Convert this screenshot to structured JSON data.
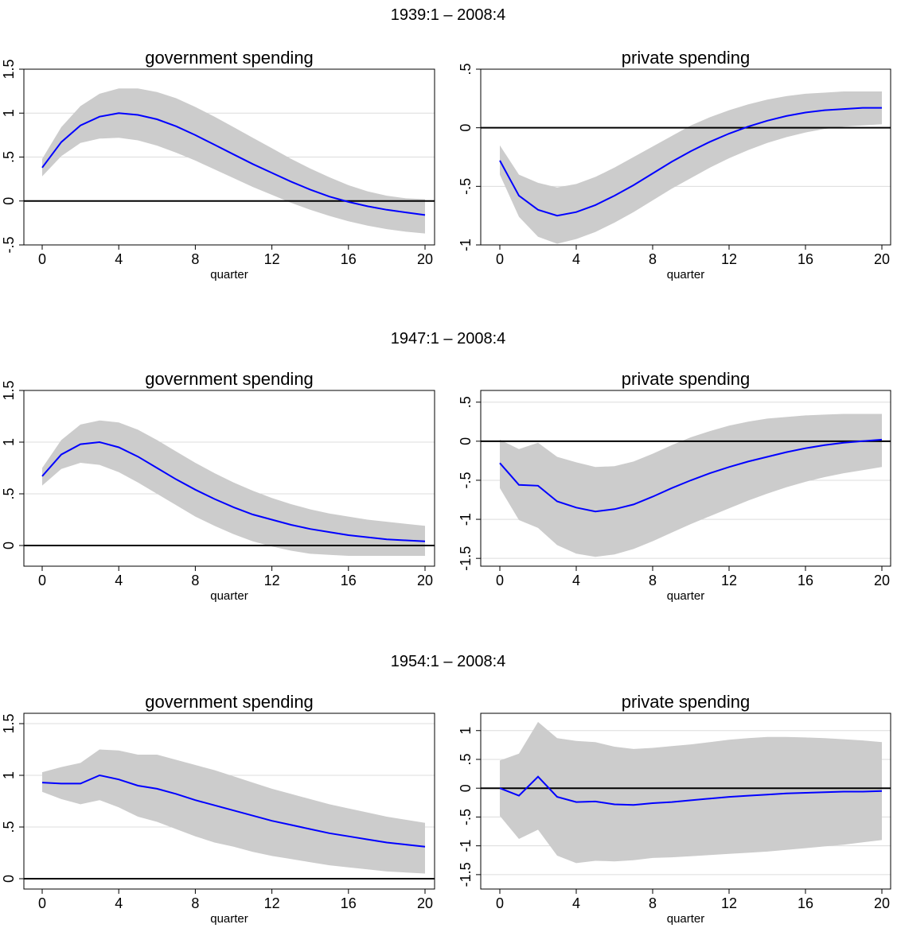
{
  "chart_data": [
    {
      "type": "line",
      "period": "1939:1 – 2008:4",
      "panels": [
        {
          "title": "government spending",
          "xlabel": "quarter",
          "xlim": [
            0,
            20
          ],
          "ylim": [
            -0.5,
            1.5
          ],
          "xticks": [
            0,
            4,
            8,
            12,
            16,
            20
          ],
          "yticks": [
            -0.5,
            0,
            0.5,
            1,
            1.5
          ],
          "ytick_labels": [
            "-.5",
            "0",
            ".5",
            "1",
            "1.5"
          ],
          "x": [
            0,
            1,
            2,
            3,
            4,
            5,
            6,
            7,
            8,
            9,
            10,
            11,
            12,
            13,
            14,
            15,
            16,
            17,
            18,
            19,
            20
          ],
          "series": [
            {
              "role": "estimate",
              "values": [
                0.38,
                0.67,
                0.86,
                0.96,
                1.0,
                0.98,
                0.93,
                0.85,
                0.75,
                0.64,
                0.53,
                0.42,
                0.32,
                0.22,
                0.13,
                0.05,
                -0.01,
                -0.06,
                -0.1,
                -0.13,
                -0.16
              ]
            },
            {
              "role": "upper",
              "values": [
                0.48,
                0.84,
                1.08,
                1.22,
                1.28,
                1.28,
                1.24,
                1.17,
                1.07,
                0.96,
                0.84,
                0.72,
                0.6,
                0.48,
                0.37,
                0.27,
                0.18,
                0.11,
                0.06,
                0.03,
                0.02
              ]
            },
            {
              "role": "lower",
              "values": [
                0.28,
                0.51,
                0.66,
                0.71,
                0.72,
                0.69,
                0.63,
                0.55,
                0.46,
                0.36,
                0.26,
                0.16,
                0.07,
                -0.02,
                -0.1,
                -0.17,
                -0.23,
                -0.28,
                -0.32,
                -0.35,
                -0.37
              ]
            }
          ]
        },
        {
          "title": "private spending",
          "xlabel": "quarter",
          "xlim": [
            0,
            20
          ],
          "ylim": [
            -1,
            0.5
          ],
          "xticks": [
            0,
            4,
            8,
            12,
            16,
            20
          ],
          "yticks": [
            -1,
            -0.5,
            0,
            0.5
          ],
          "ytick_labels": [
            "-1",
            "-.5",
            "0",
            ".5"
          ],
          "x": [
            0,
            1,
            2,
            3,
            4,
            5,
            6,
            7,
            8,
            9,
            10,
            11,
            12,
            13,
            14,
            15,
            16,
            17,
            18,
            19,
            20
          ],
          "series": [
            {
              "role": "estimate",
              "values": [
                -0.28,
                -0.58,
                -0.7,
                -0.75,
                -0.72,
                -0.66,
                -0.58,
                -0.49,
                -0.39,
                -0.29,
                -0.2,
                -0.12,
                -0.05,
                0.01,
                0.06,
                0.1,
                0.13,
                0.15,
                0.16,
                0.17,
                0.17
              ]
            },
            {
              "role": "upper",
              "values": [
                -0.15,
                -0.4,
                -0.47,
                -0.51,
                -0.48,
                -0.42,
                -0.34,
                -0.25,
                -0.16,
                -0.07,
                0.02,
                0.09,
                0.15,
                0.2,
                0.24,
                0.27,
                0.29,
                0.3,
                0.31,
                0.31,
                0.31
              ]
            },
            {
              "role": "lower",
              "values": [
                -0.4,
                -0.76,
                -0.93,
                -0.99,
                -0.95,
                -0.89,
                -0.81,
                -0.72,
                -0.62,
                -0.52,
                -0.43,
                -0.34,
                -0.26,
                -0.19,
                -0.13,
                -0.08,
                -0.04,
                -0.01,
                0.01,
                0.02,
                0.03
              ]
            }
          ]
        }
      ]
    },
    {
      "type": "line",
      "period": "1947:1 – 2008:4",
      "panels": [
        {
          "title": "government spending",
          "xlabel": "quarter",
          "xlim": [
            0,
            20
          ],
          "ylim": [
            -0.2,
            1.5
          ],
          "xticks": [
            0,
            4,
            8,
            12,
            16,
            20
          ],
          "yticks": [
            0,
            0.5,
            1,
            1.5
          ],
          "ytick_labels": [
            "0",
            ".5",
            "1",
            "1.5"
          ],
          "x": [
            0,
            1,
            2,
            3,
            4,
            5,
            6,
            7,
            8,
            9,
            10,
            11,
            12,
            13,
            14,
            15,
            16,
            17,
            18,
            19,
            20
          ],
          "series": [
            {
              "role": "estimate",
              "values": [
                0.67,
                0.88,
                0.98,
                1.0,
                0.95,
                0.86,
                0.75,
                0.64,
                0.54,
                0.45,
                0.37,
                0.3,
                0.25,
                0.2,
                0.16,
                0.13,
                0.1,
                0.08,
                0.06,
                0.05,
                0.04
              ]
            },
            {
              "role": "upper",
              "values": [
                0.75,
                1.02,
                1.17,
                1.21,
                1.19,
                1.12,
                1.02,
                0.91,
                0.8,
                0.7,
                0.61,
                0.53,
                0.46,
                0.4,
                0.35,
                0.31,
                0.28,
                0.25,
                0.23,
                0.21,
                0.19
              ]
            },
            {
              "role": "lower",
              "values": [
                0.58,
                0.74,
                0.8,
                0.78,
                0.71,
                0.61,
                0.5,
                0.39,
                0.28,
                0.19,
                0.11,
                0.04,
                -0.01,
                -0.05,
                -0.08,
                -0.09,
                -0.1,
                -0.1,
                -0.1,
                -0.1,
                -0.1
              ]
            }
          ]
        },
        {
          "title": "private spending",
          "xlabel": "quarter",
          "xlim": [
            0,
            20
          ],
          "ylim": [
            -1.6,
            0.65
          ],
          "xticks": [
            0,
            4,
            8,
            12,
            16,
            20
          ],
          "yticks": [
            -1.5,
            -1,
            -0.5,
            0,
            0.5
          ],
          "ytick_labels": [
            "-1.5",
            "-1",
            "-.5",
            "0",
            ".5"
          ],
          "x": [
            0,
            1,
            2,
            3,
            4,
            5,
            6,
            7,
            8,
            9,
            10,
            11,
            12,
            13,
            14,
            15,
            16,
            17,
            18,
            19,
            20
          ],
          "series": [
            {
              "role": "estimate",
              "values": [
                -0.28,
                -0.56,
                -0.57,
                -0.77,
                -0.85,
                -0.9,
                -0.87,
                -0.81,
                -0.71,
                -0.6,
                -0.5,
                -0.41,
                -0.33,
                -0.26,
                -0.2,
                -0.14,
                -0.09,
                -0.05,
                -0.02,
                0.0,
                0.02
              ]
            },
            {
              "role": "upper",
              "values": [
                0.02,
                -0.1,
                -0.02,
                -0.2,
                -0.27,
                -0.33,
                -0.32,
                -0.26,
                -0.16,
                -0.05,
                0.05,
                0.13,
                0.2,
                0.25,
                0.29,
                0.31,
                0.33,
                0.34,
                0.35,
                0.35,
                0.35
              ]
            },
            {
              "role": "lower",
              "values": [
                -0.6,
                -1.01,
                -1.11,
                -1.33,
                -1.44,
                -1.48,
                -1.45,
                -1.38,
                -1.28,
                -1.17,
                -1.06,
                -0.96,
                -0.86,
                -0.76,
                -0.67,
                -0.59,
                -0.52,
                -0.46,
                -0.41,
                -0.37,
                -0.33
              ]
            }
          ]
        }
      ]
    },
    {
      "type": "line",
      "period": "1954:1 – 2008:4",
      "panels": [
        {
          "title": "government spending",
          "xlabel": "quarter",
          "xlim": [
            0,
            20
          ],
          "ylim": [
            -0.1,
            1.6
          ],
          "xticks": [
            0,
            4,
            8,
            12,
            16,
            20
          ],
          "yticks": [
            0,
            0.5,
            1,
            1.5
          ],
          "ytick_labels": [
            "0",
            ".5",
            "1",
            "1.5"
          ],
          "x": [
            0,
            1,
            2,
            3,
            4,
            5,
            6,
            7,
            8,
            9,
            10,
            11,
            12,
            13,
            14,
            15,
            16,
            17,
            18,
            19,
            20
          ],
          "series": [
            {
              "role": "estimate",
              "values": [
                0.93,
                0.92,
                0.92,
                1.0,
                0.96,
                0.9,
                0.87,
                0.82,
                0.76,
                0.71,
                0.66,
                0.61,
                0.56,
                0.52,
                0.48,
                0.44,
                0.41,
                0.38,
                0.35,
                0.33,
                0.31
              ]
            },
            {
              "role": "upper",
              "values": [
                1.03,
                1.08,
                1.12,
                1.25,
                1.24,
                1.2,
                1.2,
                1.15,
                1.1,
                1.05,
                0.99,
                0.93,
                0.87,
                0.82,
                0.77,
                0.72,
                0.68,
                0.64,
                0.6,
                0.57,
                0.54
              ]
            },
            {
              "role": "lower",
              "values": [
                0.84,
                0.77,
                0.72,
                0.76,
                0.69,
                0.6,
                0.55,
                0.48,
                0.41,
                0.35,
                0.31,
                0.26,
                0.22,
                0.19,
                0.16,
                0.13,
                0.11,
                0.09,
                0.07,
                0.06,
                0.05
              ]
            }
          ]
        },
        {
          "title": "private spending",
          "xlabel": "quarter",
          "xlim": [
            0,
            20
          ],
          "ylim": [
            -1.75,
            1.3
          ],
          "xticks": [
            0,
            4,
            8,
            12,
            16,
            20
          ],
          "yticks": [
            -1.5,
            -1,
            -0.5,
            0,
            0.5,
            1
          ],
          "ytick_labels": [
            "-1.5",
            "-1",
            "-.5",
            "0",
            ".5",
            "1"
          ],
          "x": [
            0,
            1,
            2,
            3,
            4,
            5,
            6,
            7,
            8,
            9,
            10,
            11,
            12,
            13,
            14,
            15,
            16,
            17,
            18,
            19,
            20
          ],
          "series": [
            {
              "role": "estimate",
              "values": [
                0.0,
                -0.13,
                0.2,
                -0.15,
                -0.24,
                -0.23,
                -0.28,
                -0.29,
                -0.26,
                -0.24,
                -0.21,
                -0.18,
                -0.15,
                -0.13,
                -0.11,
                -0.09,
                -0.08,
                -0.07,
                -0.06,
                -0.06,
                -0.05
              ]
            },
            {
              "role": "upper",
              "values": [
                0.48,
                0.6,
                1.15,
                0.87,
                0.82,
                0.8,
                0.72,
                0.68,
                0.7,
                0.73,
                0.76,
                0.8,
                0.84,
                0.87,
                0.89,
                0.89,
                0.88,
                0.87,
                0.85,
                0.83,
                0.8
              ]
            },
            {
              "role": "lower",
              "values": [
                -0.48,
                -0.88,
                -0.72,
                -1.17,
                -1.3,
                -1.26,
                -1.27,
                -1.25,
                -1.21,
                -1.2,
                -1.18,
                -1.16,
                -1.14,
                -1.12,
                -1.1,
                -1.07,
                -1.04,
                -1.01,
                -0.98,
                -0.94,
                -0.9
              ]
            }
          ]
        }
      ]
    }
  ],
  "colors": {
    "estimate_line": "#0000ff",
    "confidence_band": "#cccccc",
    "zero_line": "#000000",
    "gridline": "#dcdcdc",
    "frame": "#000000"
  }
}
